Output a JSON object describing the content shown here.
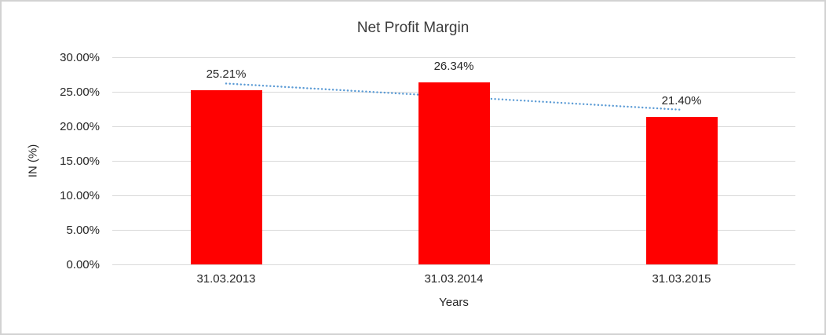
{
  "chart_data": {
    "type": "bar",
    "title": "Net Profit Margin",
    "xlabel": "Years",
    "ylabel": "IN (%)",
    "categories": [
      "31.03.2013",
      "31.03.2014",
      "31.03.2015"
    ],
    "values": [
      25.21,
      26.34,
      21.4
    ],
    "data_labels": [
      "25.21%",
      "26.34%",
      "21.40%"
    ],
    "ylim": [
      0,
      30
    ],
    "yticks": [
      {
        "value": 30,
        "label": "30.00%"
      },
      {
        "value": 25,
        "label": "25.00%"
      },
      {
        "value": 20,
        "label": "20.00%"
      },
      {
        "value": 15,
        "label": "15.00%"
      },
      {
        "value": 10,
        "label": "10.00%"
      },
      {
        "value": 5,
        "label": "5.00%"
      },
      {
        "value": 0,
        "label": "0.00%"
      }
    ],
    "grid": "horizontal",
    "legend_position": "none",
    "bar_color": "#FF0000",
    "trendline": {
      "style": "dotted",
      "color": "#5B9BD5",
      "start_value": 26.2,
      "end_value": 22.4
    }
  },
  "colors": {
    "gridline": "#D9D9D9",
    "text": "#262626",
    "frame_border": "#D2D2D2",
    "background": "#FFFFFF"
  }
}
